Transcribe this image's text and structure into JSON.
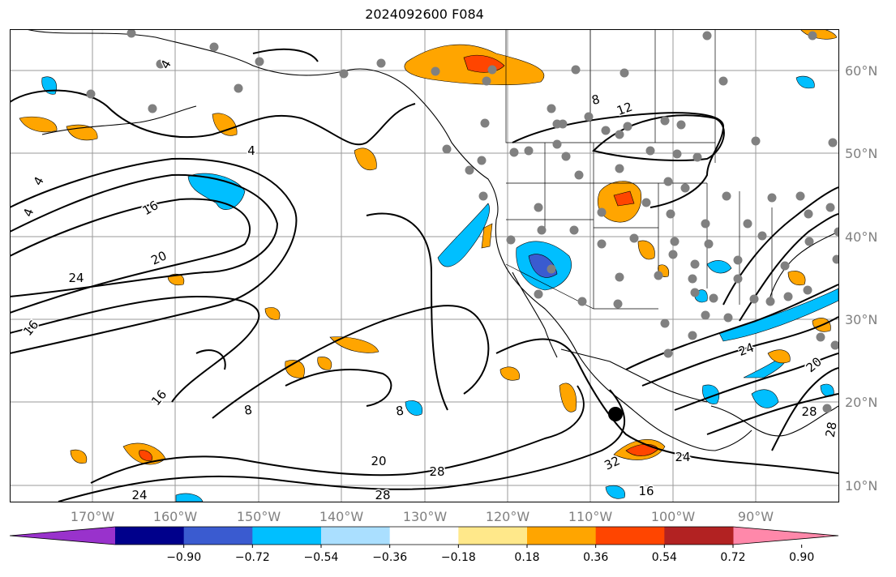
{
  "title": "2024092600 F084",
  "map": {
    "lat_labels": [
      "60°N",
      "50°N",
      "40°N",
      "30°N",
      "20°N",
      "10°N"
    ],
    "lon_labels": [
      "170°W",
      "160°W",
      "150°W",
      "140°W",
      "130°W",
      "120°W",
      "110°W",
      "100°W",
      "90°W"
    ],
    "contour_labels": [
      "4",
      "4",
      "4",
      "4",
      "8",
      "12",
      "16",
      "20",
      "24",
      "16",
      "16",
      "8",
      "8",
      "20",
      "28",
      "24",
      "28",
      "32",
      "24",
      "16",
      "24",
      "20",
      "28",
      "28"
    ],
    "colors": {
      "coastline": "#000000",
      "grid": "#9a9a9a",
      "station": "#808080",
      "storm": "#000000"
    }
  },
  "colorbar": {
    "ticks": [
      "−0.90",
      "−0.72",
      "−0.54",
      "−0.36",
      "−0.18",
      "0.18",
      "0.36",
      "0.54",
      "0.72",
      "0.90"
    ],
    "colors": [
      "#9932cc",
      "#00008b",
      "#3a5bd0",
      "#00bfff",
      "#aadfff",
      "#ffffff",
      "#ffe88a",
      "#ffa500",
      "#ff4500",
      "#b22222",
      "#ff88aa"
    ]
  }
}
